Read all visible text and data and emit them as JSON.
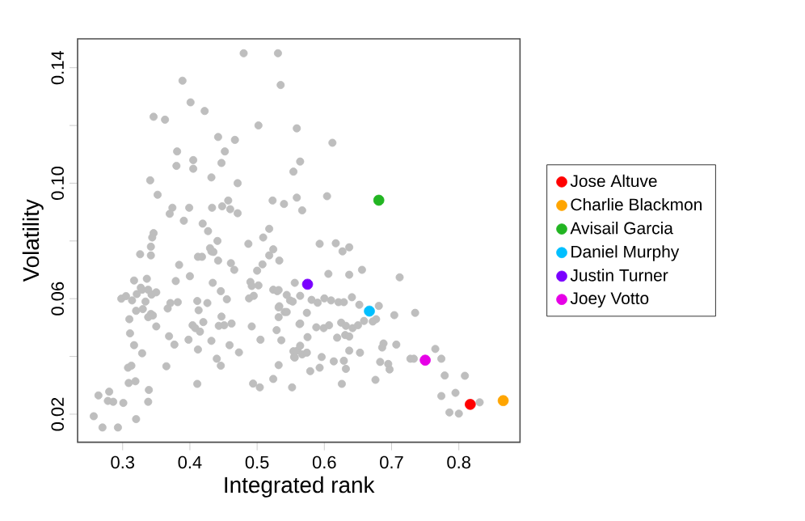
{
  "chart_data": {
    "type": "scatter",
    "xlabel": "Integrated rank",
    "ylabel": "Volatility",
    "xlim": [
      0.233,
      0.891
    ],
    "ylim": [
      0.0103,
      0.15
    ],
    "xticks": [
      0.3,
      0.4,
      0.5,
      0.6,
      0.7,
      0.8
    ],
    "yticks": [
      {
        "value": 0.02,
        "label": "0.02"
      },
      {
        "value": 0.04,
        "label": null
      },
      {
        "value": 0.06,
        "label": "0.06"
      },
      {
        "value": 0.08,
        "label": null
      },
      {
        "value": 0.1,
        "label": "0.10"
      },
      {
        "value": 0.12,
        "label": null
      },
      {
        "value": 0.14,
        "label": "0.14"
      }
    ],
    "marker": "circle",
    "legend": "right",
    "series": [
      {
        "color": "#bebebe",
        "x": [
          0.48,
          0.531,
          0.535,
          0.389,
          0.401,
          0.422,
          0.346,
          0.363,
          0.502,
          0.559,
          0.442,
          0.467,
          0.381,
          0.452,
          0.405,
          0.38,
          0.447,
          0.564,
          0.405,
          0.554,
          0.432,
          0.341,
          0.471,
          0.352,
          0.559,
          0.523,
          0.457,
          0.374,
          0.399,
          0.433,
          0.448,
          0.46,
          0.471,
          0.54,
          0.567,
          0.37,
          0.391,
          0.419,
          0.427,
          0.518,
          0.346,
          0.344,
          0.441,
          0.509,
          0.487,
          0.326,
          0.342,
          0.432,
          0.524,
          0.412,
          0.612,
          0.604,
          0.593,
          0.617,
          0.627,
          0.637,
          0.342,
          0.317,
          0.336,
          0.327,
          0.298,
          0.305,
          0.314,
          0.321,
          0.329,
          0.338,
          0.343,
          0.35,
          0.334,
          0.32,
          0.33,
          0.342,
          0.338,
          0.345,
          0.35,
          0.31,
          0.311,
          0.317,
          0.329,
          0.308,
          0.313,
          0.309,
          0.319,
          0.339,
          0.338,
          0.264,
          0.28,
          0.278,
          0.286,
          0.301,
          0.257,
          0.27,
          0.293,
          0.32,
          0.369,
          0.365,
          0.371,
          0.382,
          0.367,
          0.377,
          0.379,
          0.384,
          0.4,
          0.411,
          0.404,
          0.408,
          0.398,
          0.413,
          0.415,
          0.42,
          0.412,
          0.411,
          0.426,
          0.432,
          0.44,
          0.446,
          0.443,
          0.447,
          0.451,
          0.455,
          0.462,
          0.459,
          0.473,
          0.446,
          0.434,
          0.435,
          0.43,
          0.418,
          0.442,
          0.461,
          0.466,
          0.49,
          0.492,
          0.502,
          0.5,
          0.508,
          0.518,
          0.488,
          0.495,
          0.492,
          0.505,
          0.524,
          0.53,
          0.533,
          0.541,
          0.549,
          0.529,
          0.524,
          0.532,
          0.494,
          0.504,
          0.552,
          0.56,
          0.564,
          0.564,
          0.555,
          0.536,
          0.533,
          0.637,
          0.656,
          0.712,
          0.556,
          0.606,
          0.532,
          0.544,
          0.553,
          0.564,
          0.581,
          0.59,
          0.6,
          0.61,
          0.621,
          0.629,
          0.641,
          0.652,
          0.681,
          0.677,
          0.704,
          0.735,
          0.532,
          0.532,
          0.544,
          0.563,
          0.574,
          0.588,
          0.599,
          0.607,
          0.625,
          0.632,
          0.642,
          0.65,
          0.659,
          0.672,
          0.575,
          0.619,
          0.631,
          0.637,
          0.688,
          0.707,
          0.686,
          0.637,
          0.653,
          0.554,
          0.556,
          0.567,
          0.574,
          0.579,
          0.593,
          0.596,
          0.614,
          0.629,
          0.632,
          0.683,
          0.695,
          0.697,
          0.676,
          0.626,
          0.728,
          0.733,
          0.765,
          0.774,
          0.779,
          0.809,
          0.774,
          0.795,
          0.831,
          0.786,
          0.8
        ],
        "values": [
          0.145,
          0.145,
          0.134,
          0.1355,
          0.128,
          0.125,
          0.123,
          0.122,
          0.12,
          0.119,
          0.116,
          0.115,
          0.111,
          0.111,
          0.108,
          0.106,
          0.107,
          0.1075,
          0.105,
          0.104,
          0.102,
          0.101,
          0.1,
          0.096,
          0.095,
          0.094,
          0.094,
          0.0915,
          0.0915,
          0.0915,
          0.092,
          0.091,
          0.0896,
          0.0928,
          0.0906,
          0.0894,
          0.087,
          0.086,
          0.0834,
          0.0842,
          0.0827,
          0.0812,
          0.08,
          0.0812,
          0.079,
          0.0754,
          0.075,
          0.0764,
          0.0771,
          0.0745,
          0.114,
          0.0955,
          0.079,
          0.0792,
          0.0764,
          0.0778,
          0.078,
          0.0663,
          0.0669,
          0.0638,
          0.06,
          0.0609,
          0.0594,
          0.0616,
          0.0631,
          0.0631,
          0.0614,
          0.0622,
          0.059,
          0.0558,
          0.0564,
          0.0547,
          0.0536,
          0.0542,
          0.0504,
          0.0529,
          0.048,
          0.0439,
          0.0411,
          0.0361,
          0.0368,
          0.0308,
          0.0314,
          0.0284,
          0.0243,
          0.0265,
          0.0278,
          0.0246,
          0.0243,
          0.0239,
          0.0193,
          0.0154,
          0.0154,
          0.0183,
          0.047,
          0.0366,
          0.0585,
          0.0588,
          0.0566,
          0.0441,
          0.0661,
          0.0717,
          0.0678,
          0.0592,
          0.0508,
          0.0498,
          0.0458,
          0.056,
          0.0486,
          0.0519,
          0.0424,
          0.0305,
          0.0585,
          0.0454,
          0.0392,
          0.0368,
          0.0506,
          0.0538,
          0.0508,
          0.0598,
          0.0514,
          0.0439,
          0.0414,
          0.0626,
          0.0655,
          0.0762,
          0.0775,
          0.0745,
          0.0732,
          0.0723,
          0.07,
          0.0658,
          0.0644,
          0.0646,
          0.0697,
          0.0719,
          0.075,
          0.0601,
          0.061,
          0.0504,
          0.0458,
          0.0631,
          0.0626,
          0.0574,
          0.0554,
          0.0594,
          0.0491,
          0.0322,
          0.037,
          0.0306,
          0.0293,
          0.0293,
          0.042,
          0.0514,
          0.0437,
          0.0398,
          0.0456,
          0.0732,
          0.0683,
          0.07,
          0.0674,
          0.0655,
          0.0686,
          0.063,
          0.0613,
          0.059,
          0.061,
          0.0596,
          0.0586,
          0.0601,
          0.0594,
          0.0588,
          0.0588,
          0.0605,
          0.0579,
          0.0575,
          0.0529,
          0.0543,
          0.0551,
          0.057,
          0.0536,
          0.0554,
          0.0512,
          0.0551,
          0.0501,
          0.0498,
          0.0508,
          0.0517,
          0.0506,
          0.0498,
          0.0508,
          0.0523,
          0.0521,
          0.0467,
          0.0465,
          0.0474,
          0.0469,
          0.0445,
          0.0441,
          0.0431,
          0.042,
          0.0413,
          0.0418,
          0.0396,
          0.0407,
          0.0413,
          0.0349,
          0.0361,
          0.0398,
          0.0383,
          0.0385,
          0.0357,
          0.0381,
          0.0374,
          0.0355,
          0.0319,
          0.0305,
          0.0392,
          0.0392,
          0.0426,
          0.0392,
          0.0334,
          0.0333,
          0.0263,
          0.0274,
          0.0241,
          0.0206,
          0.0202
        ]
      },
      {
        "name": "Jose Altuve",
        "color": "#ff0000",
        "x": [
          0.817
        ],
        "values": [
          0.0234
        ]
      },
      {
        "name": "Charlie Blackmon",
        "color": "#ffa500",
        "x": [
          0.866
        ],
        "values": [
          0.0247
        ]
      },
      {
        "name": "Avisail Garcia",
        "color": "#22b522",
        "x": [
          0.681
        ],
        "values": [
          0.0941
        ]
      },
      {
        "name": "Daniel Murphy",
        "color": "#00bfff",
        "x": [
          0.667
        ],
        "values": [
          0.0557
        ]
      },
      {
        "name": "Justin Turner",
        "color": "#7a00ff",
        "x": [
          0.575
        ],
        "values": [
          0.065
        ]
      },
      {
        "name": "Joey Votto",
        "color": "#e600e6",
        "x": [
          0.75
        ],
        "values": [
          0.0387
        ]
      }
    ]
  }
}
